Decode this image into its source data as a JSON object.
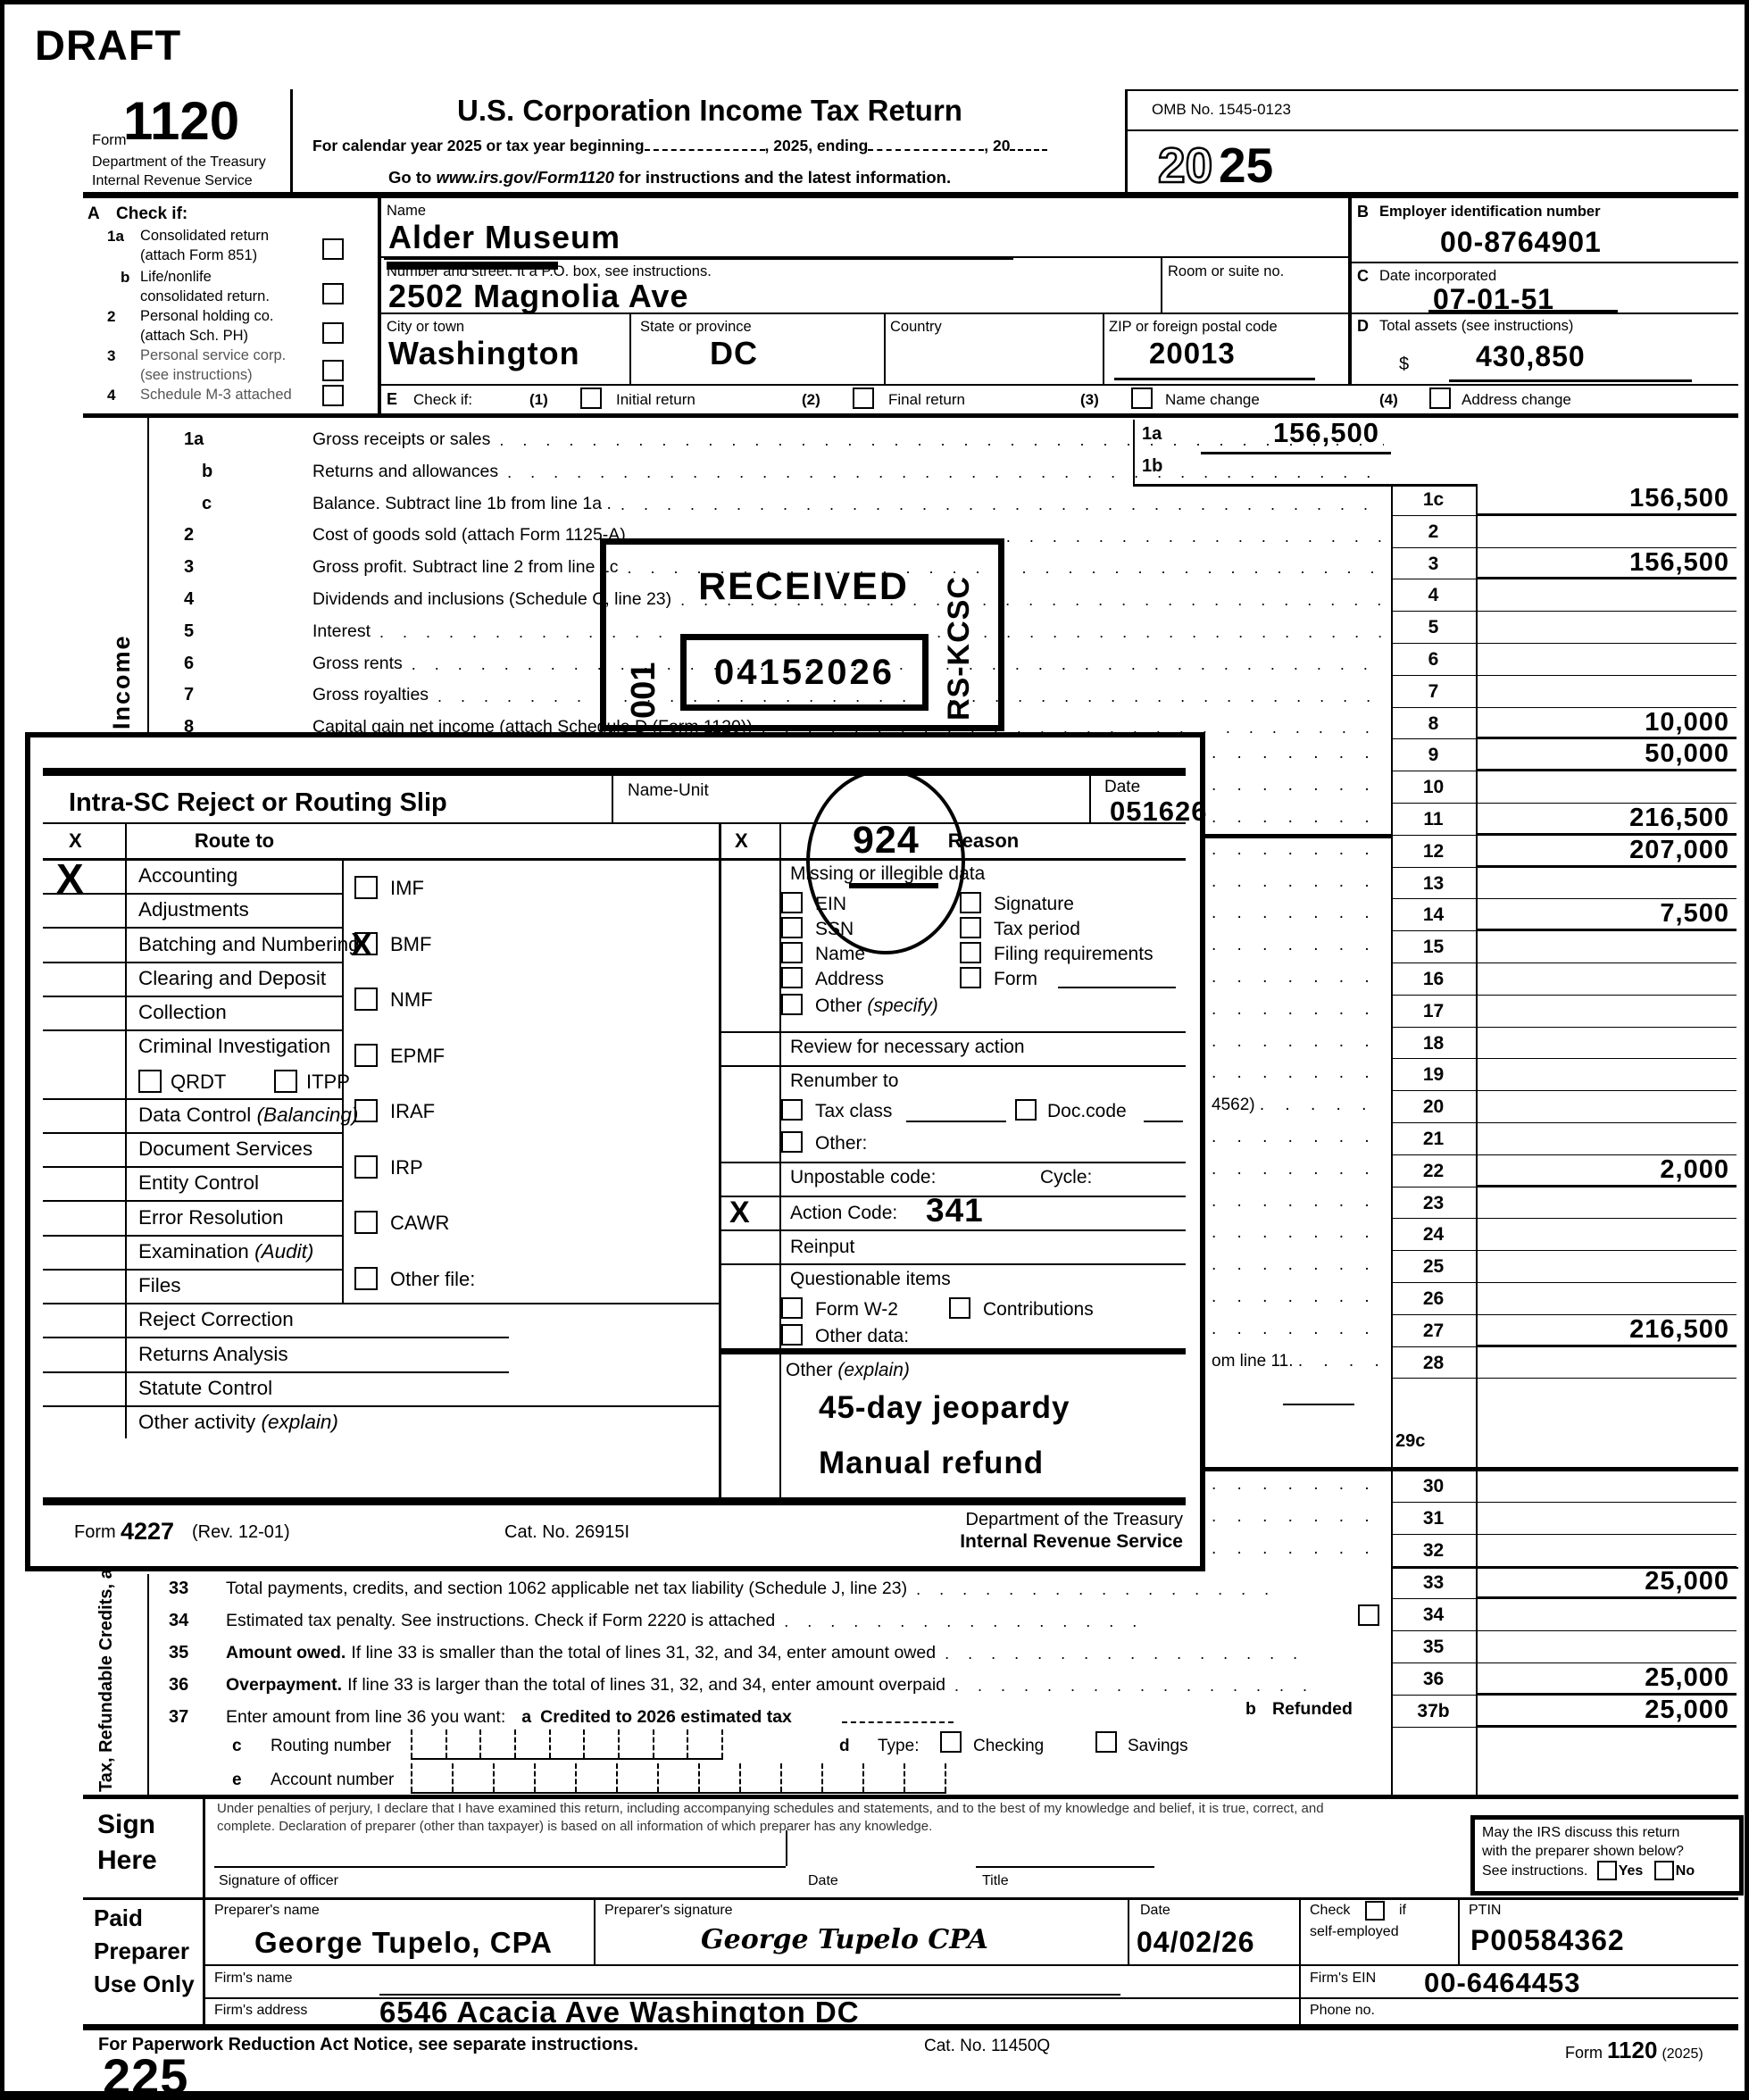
{
  "page": {
    "draft": "DRAFT",
    "page_number": "225"
  },
  "header": {
    "form_word": "Form",
    "form_number": "1120",
    "dept": "Department of the Treasury",
    "irs": "Internal Revenue Service",
    "title": "U.S. Corporation Income Tax Return",
    "cal_1": "For calendar year 2025 or tax year beginning",
    "cal_2": ", 2025, ending",
    "cal_3": ", 20",
    "goto_pre": "Go to ",
    "goto_url": "www.irs.gov/Form1120",
    "goto_post": " for instructions and the latest information.",
    "omb": "OMB No. 1545-0123",
    "year_ghost": "20",
    "year_bold": "25"
  },
  "entity": {
    "a": "A",
    "check_if": "Check if:",
    "item1a_no": "1a",
    "item1a_1": "Consolidated return",
    "item1a_2": "(attach Form 851)",
    "itemb_no": "b",
    "itemb_1": "Life/nonlife",
    "itemb_2": "consolidated return.",
    "item2_no": "2",
    "item2_1": "Personal holding co.",
    "item2_2": "(attach Sch. PH)",
    "item3_no": "3",
    "item3_1": "Personal service corp.",
    "item3_2": "(see instructions)",
    "item4_no": "4",
    "item4_1": "Schedule M-3 attached",
    "name_label": "Name",
    "name_value": "Alder Museum",
    "street_label": "Number and street. It a P.O. box, see instructions.",
    "street_value": "2502 Magnolia Ave",
    "room_label": "Room or suite no.",
    "city_label": "City or town",
    "city_value": "Washington",
    "state_label": "State or province",
    "state_value": "DC",
    "country_label": "Country",
    "zip_label": "ZIP or foreign postal code",
    "zip_value": "20013",
    "b": "B",
    "ein_label": "Employer identification number",
    "ein_value": "00-8764901",
    "c": "C",
    "inc_label": "Date incorporated",
    "inc_value": "07-01-51",
    "d": "D",
    "assets_label": "Total assets (see instructions)",
    "dollar": "$",
    "assets_value": "430,850",
    "e": "E",
    "e_check": "Check if:",
    "e1_no": "(1)",
    "e1": "Initial return",
    "e2_no": "(2)",
    "e2": "Final return",
    "e3_no": "(3)",
    "e3": "Name change",
    "e4_no": "(4)",
    "e4": "Address change"
  },
  "stamp": {
    "received": "RECEIVED",
    "date_stamp": "04152026",
    "batch": "001",
    "center_code": "RS-KCSC"
  },
  "income": {
    "sidebar": "Income",
    "lines": [
      {
        "no": "1a",
        "text": "Gross receipts or sales"
      },
      {
        "no": "b",
        "text": "Returns and allowances"
      },
      {
        "no": "c",
        "text": "Balance. Subtract line 1b from line 1a ."
      },
      {
        "no": "2",
        "text": "Cost of goods sold (attach Form 1125-A)"
      },
      {
        "no": "3",
        "text": "Gross profit. Subtract line 2 from line 1c"
      },
      {
        "no": "4",
        "text": "Dividends and inclusions (Schedule C, line 23)"
      },
      {
        "no": "5",
        "text": "Interest"
      },
      {
        "no": "6",
        "text": "Gross rents"
      },
      {
        "no": "7",
        "text": "Gross royalties"
      },
      {
        "no": "8",
        "text": "Capital gain net income (attach Schedule D (Form 1120))"
      }
    ],
    "sub_rows": [
      {
        "no": "1a",
        "value": "156,500"
      },
      {
        "no": "1b",
        "value": ""
      }
    ],
    "amount_rows": [
      {
        "no": "1c",
        "value": "156,500"
      },
      {
        "no": "2",
        "value": ""
      },
      {
        "no": "3",
        "value": "156,500"
      },
      {
        "no": "4",
        "value": ""
      },
      {
        "no": "5",
        "value": ""
      },
      {
        "no": "6",
        "value": ""
      },
      {
        "no": "7",
        "value": ""
      },
      {
        "no": "8",
        "value": "10,000"
      },
      {
        "no": "9",
        "value": "50,000"
      },
      {
        "no": "10",
        "value": ""
      },
      {
        "no": "11",
        "value": "216,500"
      },
      {
        "no": "12",
        "value": "207,000"
      },
      {
        "no": "13",
        "value": ""
      },
      {
        "no": "14",
        "value": "7,500"
      },
      {
        "no": "15",
        "value": ""
      },
      {
        "no": "16",
        "value": ""
      },
      {
        "no": "17",
        "value": ""
      },
      {
        "no": "18",
        "value": ""
      },
      {
        "no": "19",
        "value": ""
      },
      {
        "no": "20",
        "value": "",
        "frag": "4562)"
      },
      {
        "no": "21",
        "value": ""
      },
      {
        "no": "22",
        "value": "2,000"
      },
      {
        "no": "23",
        "value": ""
      },
      {
        "no": "24",
        "value": ""
      },
      {
        "no": "25",
        "value": ""
      },
      {
        "no": "26",
        "value": ""
      },
      {
        "no": "27",
        "value": "216,500"
      },
      {
        "no": "28",
        "value": "",
        "frag": "om line 11."
      }
    ],
    "line_29c": "29c",
    "lower_rows": [
      {
        "no": "30",
        "value": ""
      },
      {
        "no": "31",
        "value": ""
      },
      {
        "no": "32",
        "value": ""
      },
      {
        "no": "33",
        "value": "25,000"
      },
      {
        "no": "34",
        "value": ""
      },
      {
        "no": "35",
        "value": ""
      },
      {
        "no": "36",
        "value": "25,000"
      },
      {
        "no": "37b",
        "value": "25,000"
      }
    ]
  },
  "bottom": {
    "sidebar": "Tax, Refundable Credits, a",
    "l33_no": "33",
    "l33": "Total payments, credits, and section 1062 applicable net tax liability (Schedule J, line 23)",
    "l34_no": "34",
    "l34": "Estimated tax penalty. See instructions. Check if Form 2220 is attached",
    "l35_no": "35",
    "l35_b": "Amount owed.",
    "l35": "If line 33 is smaller than the total of lines 31, 32, and 34, enter amount owed",
    "l36_no": "36",
    "l36_b": "Overpayment.",
    "l36": "If line 33 is larger than the total of lines 31, 32, and 34, enter amount overpaid",
    "l37_no": "37",
    "l37": "Enter amount from line 36 you want:",
    "l37_a": "a",
    "l37_a_text": "Credited to 2026 estimated tax",
    "l37_b": "b",
    "l37_b_text": "Refunded",
    "l37_c": "c",
    "routing_label": "Routing number",
    "l37_d": "d",
    "type_label": "Type:",
    "checking": "Checking",
    "savings": "Savings",
    "l37_e": "e",
    "account_label": "Account number"
  },
  "slip": {
    "title": "Intra-SC Reject or Routing Slip",
    "name_unit_label": "Name-Unit",
    "name_unit_value": "924",
    "date_label": "Date",
    "date_value": "051626",
    "x_header": "X",
    "route_header": "Route to",
    "reason_x_header": "X",
    "reason_header": "Reason",
    "routes": [
      {
        "label": "Accounting",
        "x": "X"
      },
      {
        "label": "Adjustments"
      },
      {
        "label": "Batching and Numbering"
      },
      {
        "label": "Clearing and Deposit"
      },
      {
        "label": "Collection"
      },
      {
        "label": "Criminal Investigation"
      },
      {
        "sub": [
          "QRDT",
          "ITPP"
        ]
      },
      {
        "label": "Data Control ",
        "italic": "(Balancing)"
      },
      {
        "label": "Document Services"
      },
      {
        "label": "Entity Control"
      },
      {
        "label": "Error Resolution"
      },
      {
        "label": "Examination ",
        "italic": "(Audit)"
      },
      {
        "label": "Files"
      },
      {
        "label": "Reject Correction"
      },
      {
        "label": "Returns Analysis"
      },
      {
        "label": "Statute Control"
      },
      {
        "label": "Other activity ",
        "italic": "(explain)"
      }
    ],
    "files": [
      {
        "label": "IMF"
      },
      {
        "label": "BMF",
        "checked": "X"
      },
      {
        "label": "NMF"
      },
      {
        "label": "EPMF"
      },
      {
        "label": "IRAF"
      },
      {
        "label": "IRP"
      },
      {
        "label": "CAWR"
      },
      {
        "label": "Other file:"
      }
    ],
    "reason": {
      "missing_header": "Missing or illegible data",
      "ein": "EIN",
      "ssn": "SSN",
      "name": "Name",
      "address": "Address",
      "other_specify": "Other ",
      "other_specify_i": "(specify)",
      "signature": "Signature",
      "tax_period": "Tax period",
      "filing_req": "Filing requirements",
      "form": "Form",
      "review": "Review for necessary action",
      "renumber": "Renumber to",
      "tax_class": "Tax class",
      "doc_code": "Doc.code",
      "other2": "Other:",
      "unpostable": "Unpostable code:",
      "cycle": "Cycle:",
      "action_x": "X",
      "action_label": "Action Code:",
      "action_value": "341",
      "reinput": "Reinput",
      "questionable": "Questionable items",
      "form_w2": "Form W-2",
      "contributions": "Contributions",
      "other_data": "Other data:",
      "other_explain": "Other ",
      "other_explain_i": "(explain)",
      "hw1": "45-day jeopardy",
      "hw2": "Manual refund"
    },
    "footer_form": "Form",
    "footer_num": "4227",
    "footer_rev": "(Rev. 12-01)",
    "footer_cat": "Cat. No. 26915I",
    "footer_dept": "Department of the Treasury",
    "footer_irs": "Internal Revenue Service"
  },
  "sign": {
    "sign": "Sign",
    "here": "Here",
    "perjury_1": "Under penalties of perjury, I declare that I have examined this return, including accompanying schedules and statements, and to the best of my knowledge and belief, it is true, correct, and",
    "perjury_2": "complete. Declaration of preparer (other than taxpayer) is based on all information of which preparer has any knowledge.",
    "sig_label": "Signature of officer",
    "date_label": "Date",
    "title_label": "Title",
    "discuss_1": "May the IRS discuss this return",
    "discuss_2": "with the preparer shown below?",
    "discuss_3": "See instructions.",
    "yes": "Yes",
    "no": "No"
  },
  "preparer": {
    "paid": "Paid",
    "preparer": "Preparer",
    "use_only": "Use Only",
    "name_label": "Preparer's name",
    "name_value": "George Tupelo, CPA",
    "sig_label": "Preparer's signature",
    "sig_value": "George Tupelo CPA",
    "date_label": "Date",
    "date_value": "04/02/26",
    "check": "Check",
    "if": "if",
    "self_employed": "self-employed",
    "ptin_label": "PTIN",
    "ptin_value": "P00584362",
    "firm_name_label": "Firm's name",
    "firm_ein_label": "Firm's EIN",
    "firm_ein_value": "00-6464453",
    "firm_addr_label": "Firm's address",
    "firm_addr_value": "6546 Acacia Ave Washington DC",
    "phone_label": "Phone no."
  },
  "footer": {
    "notice": "For Paperwork Reduction Act Notice, see separate instructions.",
    "cat": "Cat. No. 11450Q",
    "form_word": "Form",
    "form_num": "1120",
    "form_year": "(2025)"
  }
}
